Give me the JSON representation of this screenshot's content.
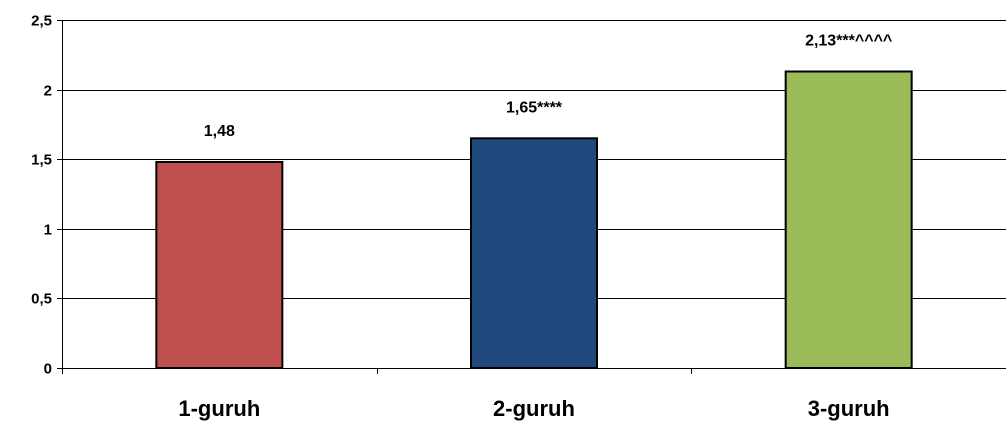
{
  "chart_data": {
    "type": "bar",
    "categories": [
      "1-guruh",
      "2-guruh",
      "3-guruh"
    ],
    "values": [
      1.48,
      1.65,
      2.13
    ],
    "data_labels": [
      "1,48",
      "1,65****",
      "2,13***^^^^"
    ],
    "colors": [
      "#c0504d",
      "#1f497d",
      "#9bbb59"
    ],
    "ylim": [
      0,
      2.5
    ],
    "yticks": [
      0,
      0.5,
      1,
      1.5,
      2,
      2.5
    ],
    "ytick_labels": [
      "0",
      "0,5",
      "1",
      "1,5",
      "2",
      "2,5"
    ],
    "grid": true,
    "title": "",
    "xlabel": "",
    "ylabel": ""
  }
}
